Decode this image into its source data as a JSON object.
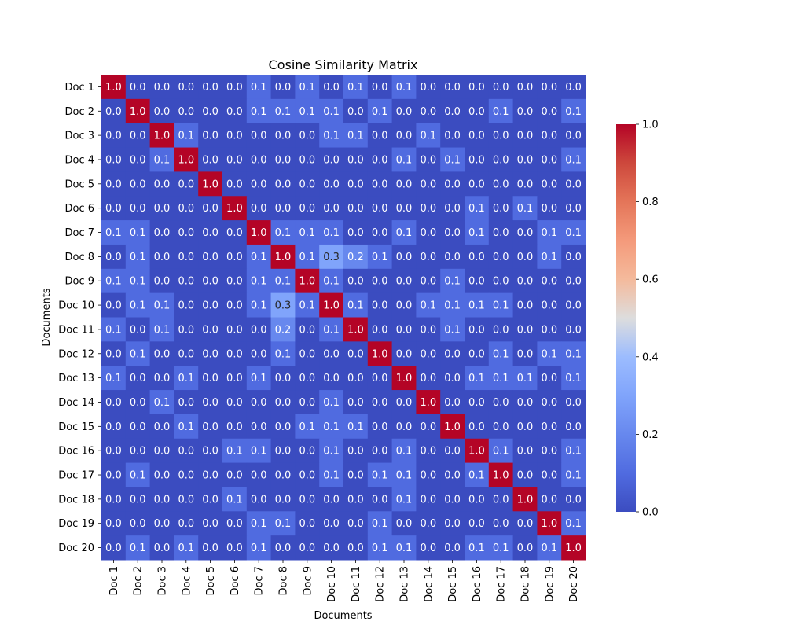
{
  "chart_data": {
    "type": "heatmap",
    "title": "Cosine Similarity Matrix",
    "xlabel": "Documents",
    "ylabel": "Documents",
    "x_categories": [
      "Doc 1",
      "Doc 2",
      "Doc 3",
      "Doc 4",
      "Doc 5",
      "Doc 6",
      "Doc 7",
      "Doc 8",
      "Doc 9",
      "Doc 10",
      "Doc 11",
      "Doc 12",
      "Doc 13",
      "Doc 14",
      "Doc 15",
      "Doc 16",
      "Doc 17",
      "Doc 18",
      "Doc 19",
      "Doc 20"
    ],
    "y_categories": [
      "Doc 1",
      "Doc 2",
      "Doc 3",
      "Doc 4",
      "Doc 5",
      "Doc 6",
      "Doc 7",
      "Doc 8",
      "Doc 9",
      "Doc 10",
      "Doc 11",
      "Doc 12",
      "Doc 13",
      "Doc 14",
      "Doc 15",
      "Doc 16",
      "Doc 17",
      "Doc 18",
      "Doc 19",
      "Doc 20"
    ],
    "values": [
      [
        1.0,
        0.0,
        0.0,
        0.0,
        0.0,
        0.0,
        0.1,
        0.0,
        0.1,
        0.0,
        0.1,
        0.0,
        0.1,
        0.0,
        0.0,
        0.0,
        0.0,
        0.0,
        0.0,
        0.0
      ],
      [
        0.0,
        1.0,
        0.0,
        0.0,
        0.0,
        0.0,
        0.1,
        0.1,
        0.1,
        0.1,
        0.0,
        0.1,
        0.0,
        0.0,
        0.0,
        0.0,
        0.1,
        0.0,
        0.0,
        0.1
      ],
      [
        0.0,
        0.0,
        1.0,
        0.1,
        0.0,
        0.0,
        0.0,
        0.0,
        0.0,
        0.1,
        0.1,
        0.0,
        0.0,
        0.1,
        0.0,
        0.0,
        0.0,
        0.0,
        0.0,
        0.0
      ],
      [
        0.0,
        0.0,
        0.1,
        1.0,
        0.0,
        0.0,
        0.0,
        0.0,
        0.0,
        0.0,
        0.0,
        0.0,
        0.1,
        0.0,
        0.1,
        0.0,
        0.0,
        0.0,
        0.0,
        0.1
      ],
      [
        0.0,
        0.0,
        0.0,
        0.0,
        1.0,
        0.0,
        0.0,
        0.0,
        0.0,
        0.0,
        0.0,
        0.0,
        0.0,
        0.0,
        0.0,
        0.0,
        0.0,
        0.0,
        0.0,
        0.0
      ],
      [
        0.0,
        0.0,
        0.0,
        0.0,
        0.0,
        1.0,
        0.0,
        0.0,
        0.0,
        0.0,
        0.0,
        0.0,
        0.0,
        0.0,
        0.0,
        0.1,
        0.0,
        0.1,
        0.0,
        0.0
      ],
      [
        0.1,
        0.1,
        0.0,
        0.0,
        0.0,
        0.0,
        1.0,
        0.1,
        0.1,
        0.1,
        0.0,
        0.0,
        0.1,
        0.0,
        0.0,
        0.1,
        0.0,
        0.0,
        0.1,
        0.1
      ],
      [
        0.0,
        0.1,
        0.0,
        0.0,
        0.0,
        0.0,
        0.1,
        1.0,
        0.1,
        0.3,
        0.2,
        0.1,
        0.0,
        0.0,
        0.0,
        0.0,
        0.0,
        0.0,
        0.1,
        0.0
      ],
      [
        0.1,
        0.1,
        0.0,
        0.0,
        0.0,
        0.0,
        0.1,
        0.1,
        1.0,
        0.1,
        0.0,
        0.0,
        0.0,
        0.0,
        0.1,
        0.0,
        0.0,
        0.0,
        0.0,
        0.0
      ],
      [
        0.0,
        0.1,
        0.1,
        0.0,
        0.0,
        0.0,
        0.1,
        0.3,
        0.1,
        1.0,
        0.1,
        0.0,
        0.0,
        0.1,
        0.1,
        0.1,
        0.1,
        0.0,
        0.0,
        0.0
      ],
      [
        0.1,
        0.0,
        0.1,
        0.0,
        0.0,
        0.0,
        0.0,
        0.2,
        0.0,
        0.1,
        1.0,
        0.0,
        0.0,
        0.0,
        0.1,
        0.0,
        0.0,
        0.0,
        0.0,
        0.0
      ],
      [
        0.0,
        0.1,
        0.0,
        0.0,
        0.0,
        0.0,
        0.0,
        0.1,
        0.0,
        0.0,
        0.0,
        1.0,
        0.0,
        0.0,
        0.0,
        0.0,
        0.1,
        0.0,
        0.1,
        0.1
      ],
      [
        0.1,
        0.0,
        0.0,
        0.1,
        0.0,
        0.0,
        0.1,
        0.0,
        0.0,
        0.0,
        0.0,
        0.0,
        1.0,
        0.0,
        0.0,
        0.1,
        0.1,
        0.1,
        0.0,
        0.1
      ],
      [
        0.0,
        0.0,
        0.1,
        0.0,
        0.0,
        0.0,
        0.0,
        0.0,
        0.0,
        0.1,
        0.0,
        0.0,
        0.0,
        1.0,
        0.0,
        0.0,
        0.0,
        0.0,
        0.0,
        0.0
      ],
      [
        0.0,
        0.0,
        0.0,
        0.1,
        0.0,
        0.0,
        0.0,
        0.0,
        0.1,
        0.1,
        0.1,
        0.0,
        0.0,
        0.0,
        1.0,
        0.0,
        0.0,
        0.0,
        0.0,
        0.0
      ],
      [
        0.0,
        0.0,
        0.0,
        0.0,
        0.0,
        0.1,
        0.1,
        0.0,
        0.0,
        0.1,
        0.0,
        0.0,
        0.1,
        0.0,
        0.0,
        1.0,
        0.1,
        0.0,
        0.0,
        0.1
      ],
      [
        0.0,
        0.1,
        0.0,
        0.0,
        0.0,
        0.0,
        0.0,
        0.0,
        0.0,
        0.1,
        0.0,
        0.1,
        0.1,
        0.0,
        0.0,
        0.1,
        1.0,
        0.0,
        0.0,
        0.1
      ],
      [
        0.0,
        0.0,
        0.0,
        0.0,
        0.0,
        0.1,
        0.0,
        0.0,
        0.0,
        0.0,
        0.0,
        0.0,
        0.1,
        0.0,
        0.0,
        0.0,
        0.0,
        1.0,
        0.0,
        0.0
      ],
      [
        0.0,
        0.0,
        0.0,
        0.0,
        0.0,
        0.0,
        0.1,
        0.1,
        0.0,
        0.0,
        0.0,
        0.1,
        0.0,
        0.0,
        0.0,
        0.0,
        0.0,
        0.0,
        1.0,
        0.1
      ],
      [
        0.0,
        0.1,
        0.0,
        0.1,
        0.0,
        0.0,
        0.1,
        0.0,
        0.0,
        0.0,
        0.0,
        0.1,
        0.1,
        0.0,
        0.0,
        0.1,
        0.1,
        0.0,
        0.1,
        1.0
      ]
    ],
    "colormap": "coolwarm",
    "vmin": 0.0,
    "vmax": 1.0,
    "colorbar_ticks": [
      "0.0",
      "0.2",
      "0.4",
      "0.6",
      "0.8",
      "1.0"
    ],
    "grid": false,
    "annotated": true
  }
}
